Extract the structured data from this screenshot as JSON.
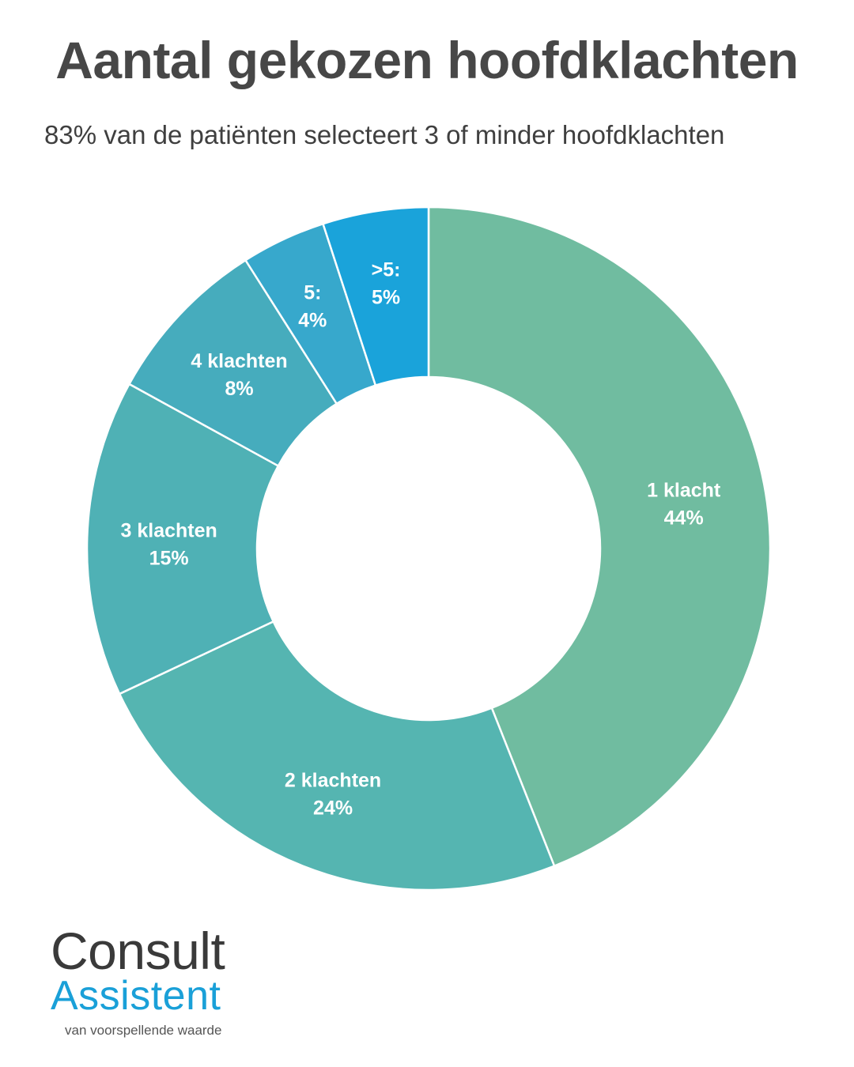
{
  "header": {
    "title": "Aantal gekozen hoofdklachten",
    "subtitle": "83% van de patiënten selecteert 3 of minder hoofdklachten"
  },
  "logo": {
    "line1": "Consult",
    "line2": "Assistent",
    "tagline": "van voorspellende waarde"
  },
  "chart_data": {
    "type": "pie",
    "variant": "donut",
    "title": "Aantal gekozen hoofdklachten",
    "slices": [
      {
        "category": "1 klacht",
        "value": 44,
        "label": "44%",
        "color": "#70bca0"
      },
      {
        "category": "2 klachten",
        "value": 24,
        "label": "24%",
        "color": "#55b5b1"
      },
      {
        "category": "3 klachten",
        "value": 15,
        "label": "15%",
        "color": "#4fb1b5"
      },
      {
        "category": "4 klachten",
        "value": 8,
        "label": "8%",
        "color": "#46acbd"
      },
      {
        "category": "5:",
        "value": 4,
        "label": "4%",
        "color": "#37a8cc"
      },
      {
        "category": ">5:",
        "value": 5,
        "label": "5%",
        "color": "#1aa3da"
      }
    ],
    "legend": "none",
    "data_labels": "inside"
  }
}
